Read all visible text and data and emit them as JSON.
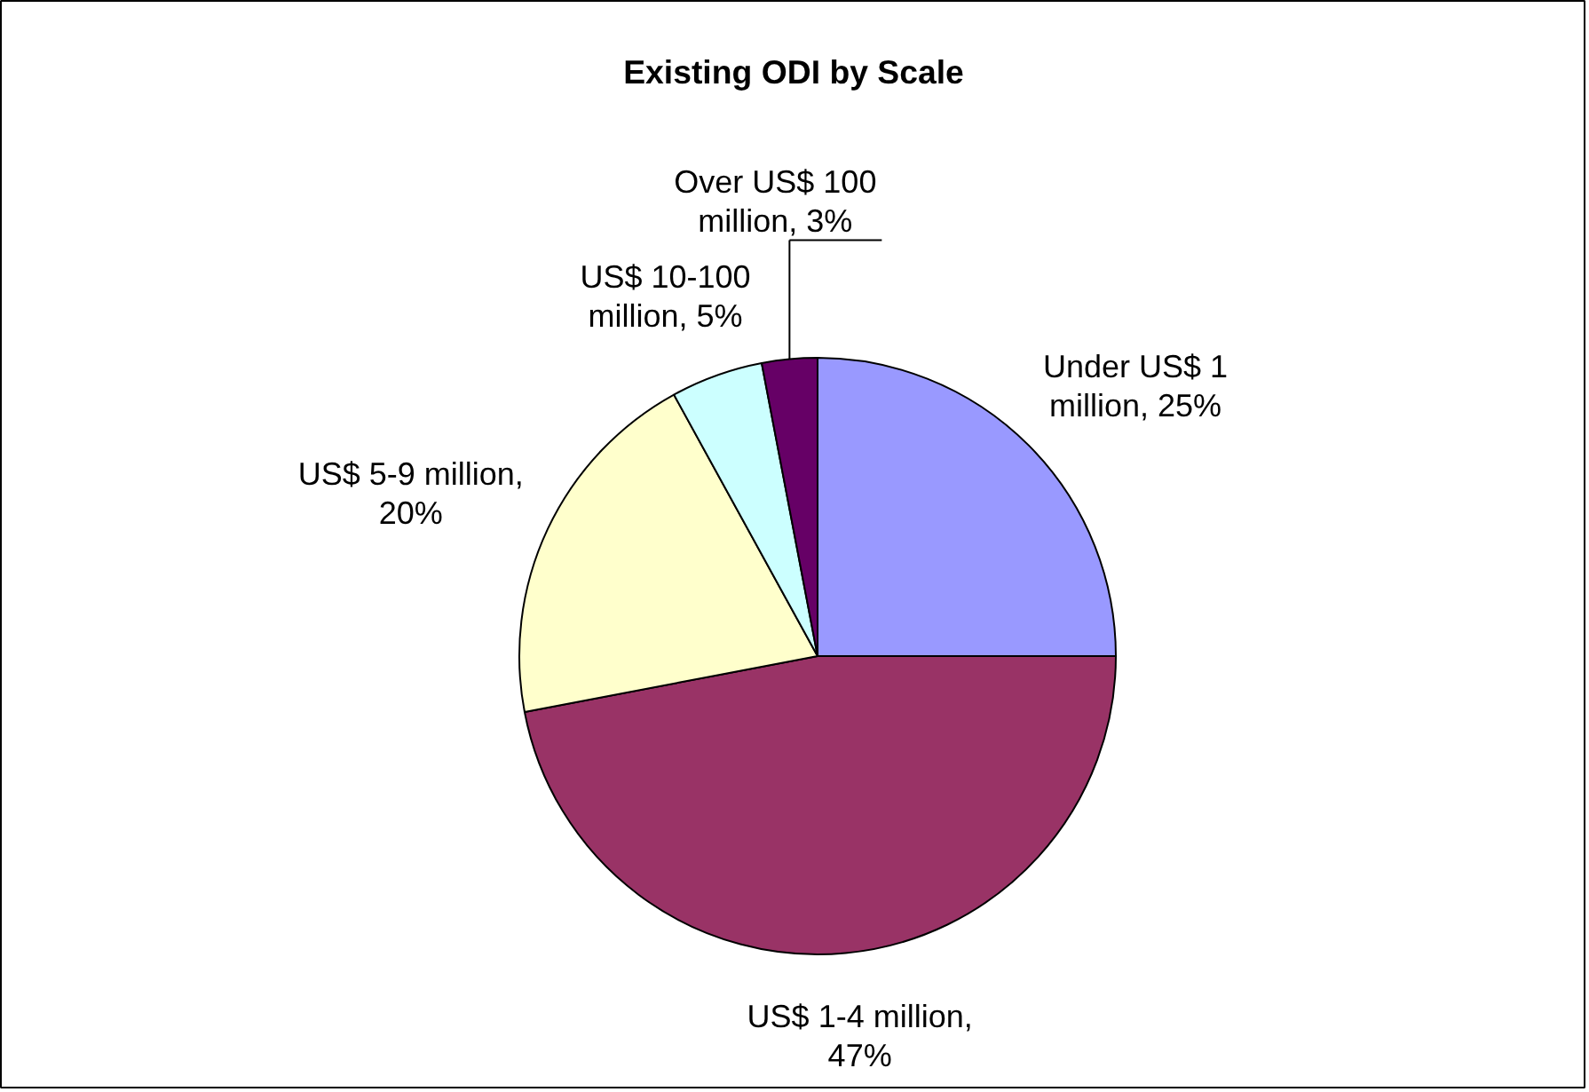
{
  "chart_data": {
    "type": "pie",
    "title": "Existing ODI by Scale",
    "categories": [
      "Under US$ 1 million, 25%",
      "US$ 1-4 million, 47%",
      "US$ 5-9 million, 20%",
      "US$ 10-100 million, 5%",
      "Over US$ 100 million, 3%"
    ],
    "values": [
      25,
      47,
      20,
      5,
      3
    ],
    "colors": [
      "#9999ff",
      "#993366",
      "#ffffcc",
      "#ccffff",
      "#660066"
    ]
  }
}
